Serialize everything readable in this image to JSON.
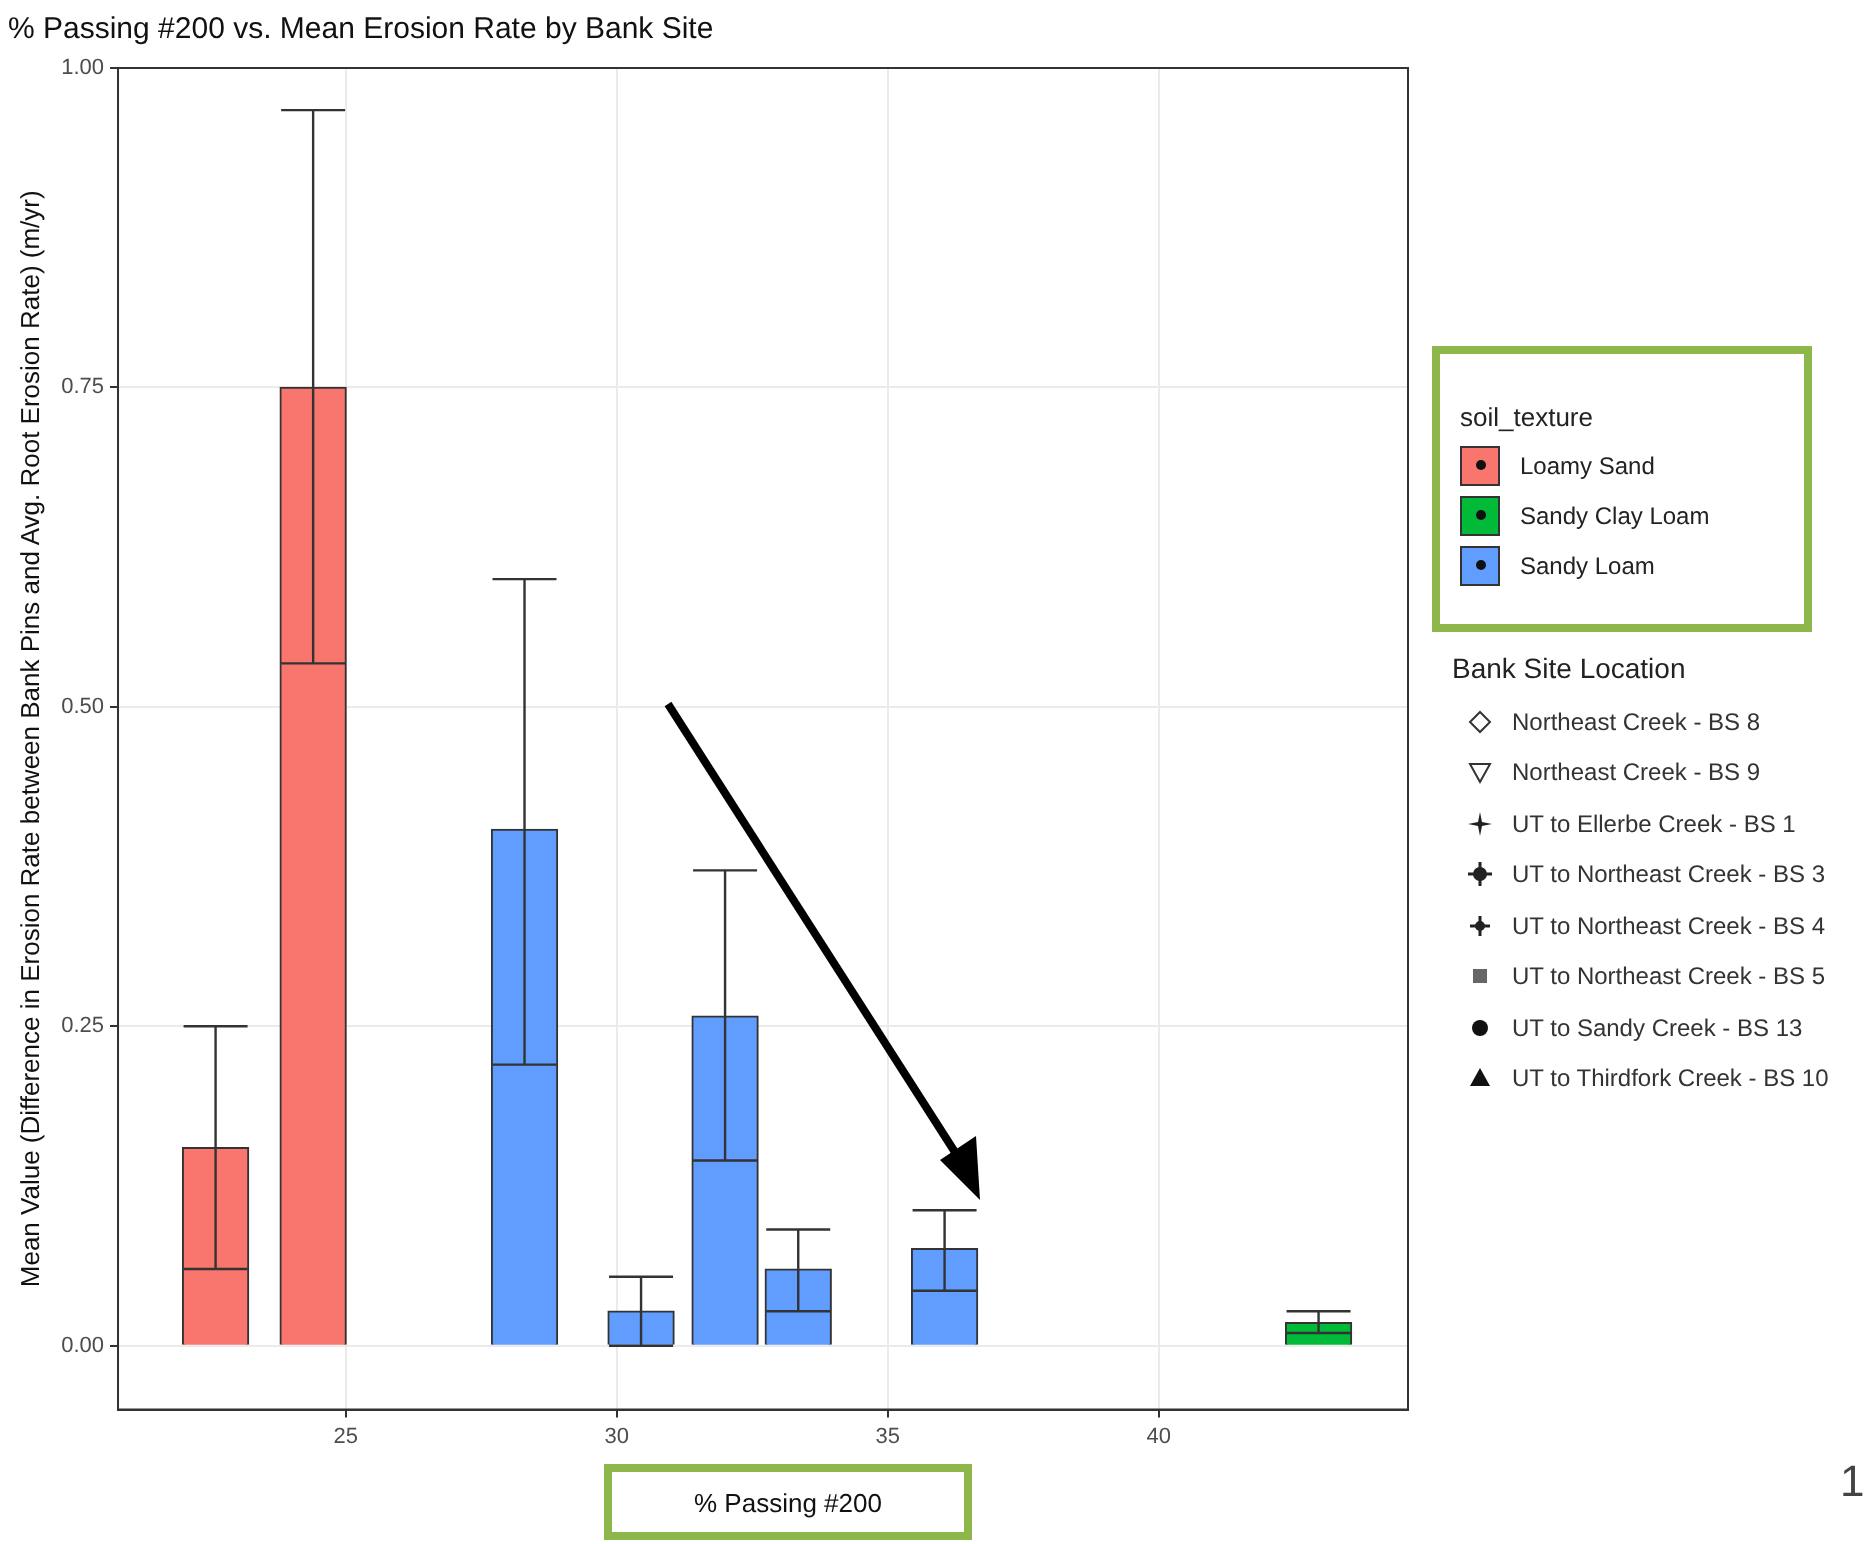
{
  "chart_data": {
    "type": "bar",
    "title": "% Passing #200 vs. Mean Erosion Rate by Bank Site",
    "xlabel": "% Passing #200",
    "ylabel": "Mean Value (Difference in Erosion Rate between Bank Pins and Avg. Root Erosion Rate) (m/yr)",
    "legend_title": "soil_texture",
    "legend": "right",
    "series": [
      {
        "name": "Loamy Sand",
        "color": "#f8766d",
        "x": [
          22.6,
          24.4
        ],
        "values": [
          0.155,
          0.75
        ],
        "errors": [
          [
            0.06,
            0.25
          ],
          [
            0.534,
            0.967
          ]
        ]
      },
      {
        "name": "Sandy Clay Loam",
        "color": "#00ba38",
        "x": [
          42.95
        ],
        "values": [
          0.018
        ],
        "errors": [
          [
            0.01,
            0.027
          ]
        ]
      },
      {
        "name": "Sandy Loam",
        "color": "#619cff",
        "x": [
          28.3,
          30.45,
          32.0,
          33.35,
          36.05
        ],
        "values": [
          0.404,
          0.027,
          0.258,
          0.06,
          0.076
        ],
        "errors": [
          [
            0.22,
            0.6
          ],
          [
            0.0,
            0.054
          ],
          [
            0.145,
            0.372
          ],
          [
            0.027,
            0.091
          ],
          [
            0.043,
            0.106
          ]
        ]
      }
    ],
    "xlim": [
      20.8,
      44.6
    ],
    "xticks": [
      25,
      30,
      35,
      40
    ],
    "ylim": [
      -0.05,
      1.0
    ],
    "yticks": [
      {
        "value": 0,
        "label": "0.00"
      },
      {
        "value": 0.25,
        "label": "0.25"
      },
      {
        "value": 0.5,
        "label": "0.50"
      },
      {
        "value": 0.75,
        "label": "0.75"
      },
      {
        "value": 1,
        "label": "1.00"
      }
    ],
    "grid": true,
    "annotations": [
      "Bank Site Location",
      "Northeast Creek - BS 8",
      "Northeast Creek - BS 9",
      "UT to Ellerbe Creek - BS 1",
      "UT to Northeast Creek - BS 3",
      "UT to Northeast Creek - BS 4",
      "UT to Northeast Creek - BS 5",
      "UT to Sandy Creek - BS 13",
      "UT to Thirdfork Creek - BS 10",
      "1"
    ]
  }
}
